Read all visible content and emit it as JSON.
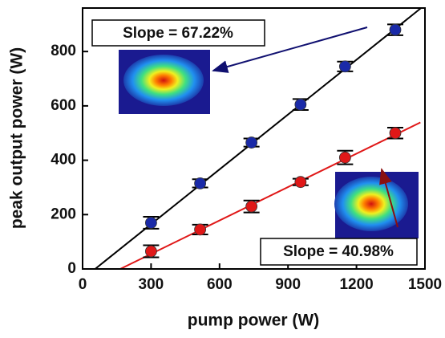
{
  "chart_data": {
    "type": "scatter",
    "x_label": "pump power (W)",
    "y_label": "peak output power (W)",
    "xlim": [
      0,
      1500
    ],
    "xticks": [
      0,
      300,
      600,
      900,
      1200,
      1500
    ],
    "ylim": [
      0,
      960
    ],
    "yticks": [
      0,
      200,
      400,
      600,
      800
    ],
    "x": [
      300,
      515,
      740,
      955,
      1150,
      1370
    ],
    "series": [
      {
        "color": "#1a2aa8",
        "values": [
          170,
          315,
          465,
          605,
          745,
          880
        ],
        "errors": [
          22,
          15,
          15,
          20,
          18,
          20
        ]
      },
      {
        "color": "#e01818",
        "values": [
          65,
          145,
          230,
          320,
          410,
          500
        ],
        "errors": [
          22,
          18,
          22,
          12,
          25,
          20
        ]
      }
    ],
    "fits": [
      {
        "color": "#000000",
        "x": [
          55,
          1483
        ],
        "values": [
          0,
          960
        ]
      },
      {
        "color": "#e01818",
        "x": [
          165,
          1480
        ],
        "values": [
          0,
          539
        ]
      }
    ],
    "annotations": [
      {
        "text": "Slope = 67.22%"
      },
      {
        "text": "Slope = 40.98%"
      }
    ]
  }
}
